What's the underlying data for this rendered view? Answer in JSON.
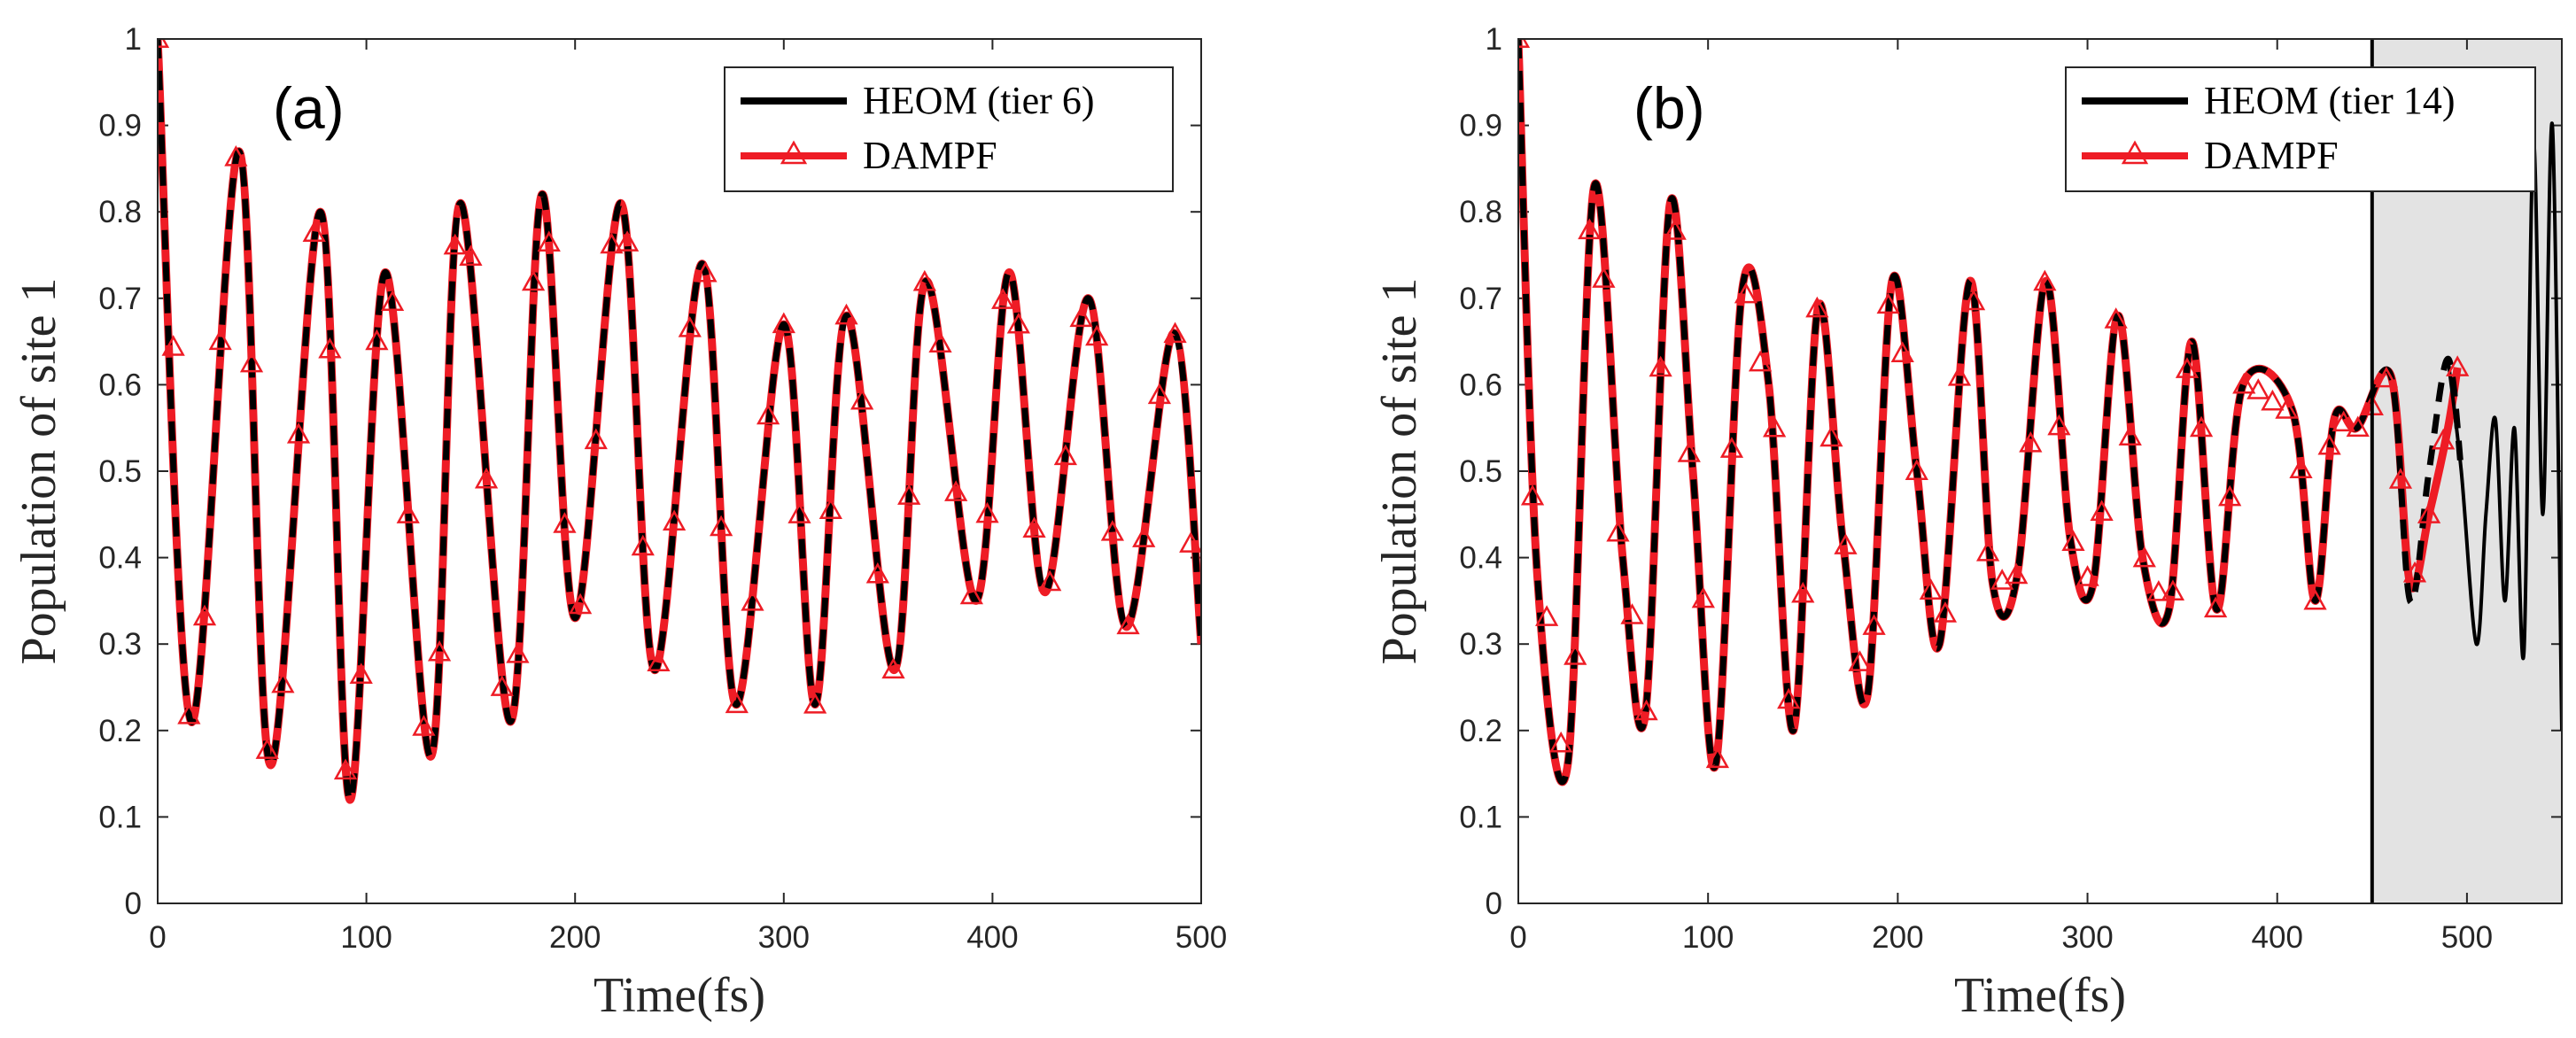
{
  "colors": {
    "heom": "#000000",
    "dampf": "#ee1c25",
    "unreliable_region": "#e3e3e3",
    "axis": "#262626"
  },
  "chart_data": [
    {
      "type": "line",
      "panel_label": "(a)",
      "xlabel": "Time(fs)",
      "ylabel": "Population of site 1",
      "xlim": [
        0,
        500
      ],
      "ylim": [
        0,
        1
      ],
      "xticks": [
        0,
        100,
        200,
        300,
        400,
        500
      ],
      "yticks": [
        0,
        0.1,
        0.2,
        0.3,
        0.4,
        0.5,
        0.6,
        0.7,
        0.8,
        0.9,
        1
      ],
      "ytick_labels": [
        "0",
        "0.1",
        "0.2",
        "0.3",
        "0.4",
        "0.5",
        "0.6",
        "0.7",
        "0.8",
        "0.9",
        "1"
      ],
      "legend_position": "top-right",
      "legend": [
        "HEOM (tier 6)",
        "DAMPF"
      ],
      "series": [
        {
          "name": "HEOM (tier 6)",
          "style": "solid",
          "x": [
            0,
            16,
            39,
            54,
            78,
            92,
            109,
            131,
            145,
            169,
            184,
            200,
            222,
            238,
            261,
            277,
            300,
            315,
            330,
            353,
            368,
            392,
            408,
            425,
            446,
            464,
            487,
            500
          ],
          "y": [
            1.0,
            0.21,
            0.87,
            0.16,
            0.8,
            0.12,
            0.73,
            0.17,
            0.81,
            0.21,
            0.82,
            0.33,
            0.81,
            0.27,
            0.74,
            0.23,
            0.67,
            0.23,
            0.68,
            0.27,
            0.72,
            0.35,
            0.73,
            0.36,
            0.7,
            0.32,
            0.66,
            0.3
          ]
        },
        {
          "name": "DAMPF",
          "style": "dashed-with-triangles",
          "x": [
            0,
            16,
            39,
            54,
            78,
            92,
            109,
            131,
            145,
            169,
            184,
            200,
            222,
            238,
            261,
            277,
            300,
            315,
            330,
            353,
            368,
            392,
            408,
            425,
            446,
            464,
            487,
            500
          ],
          "y": [
            1.0,
            0.21,
            0.87,
            0.16,
            0.8,
            0.12,
            0.73,
            0.17,
            0.81,
            0.21,
            0.82,
            0.33,
            0.81,
            0.27,
            0.74,
            0.23,
            0.67,
            0.23,
            0.68,
            0.27,
            0.72,
            0.35,
            0.73,
            0.36,
            0.7,
            0.32,
            0.66,
            0.3
          ]
        }
      ]
    },
    {
      "type": "line",
      "panel_label": "(b)",
      "xlabel": "Time(fs)",
      "ylabel": "Population of site 1",
      "xlim": [
        0,
        550
      ],
      "ylim": [
        0,
        1
      ],
      "xticks": [
        0,
        100,
        200,
        300,
        400,
        500
      ],
      "yticks": [
        0,
        0.1,
        0.2,
        0.3,
        0.4,
        0.5,
        0.6,
        0.7,
        0.8,
        0.9,
        1
      ],
      "ytick_labels": [
        "0",
        "0.1",
        "0.2",
        "0.3",
        "0.4",
        "0.5",
        "0.6",
        "0.7",
        "0.8",
        "0.9",
        "1"
      ],
      "legend_position": "top-right",
      "legend": [
        "HEOM (tier 14)",
        "DAMPF"
      ],
      "shaded_region": [
        450,
        550
      ],
      "vertical_line_x": 450,
      "series": [
        {
          "name": "HEOM (tier 14)",
          "style": "solid",
          "x": [
            0,
            10,
            26,
            40,
            55,
            67,
            80,
            92,
            104,
            118,
            132,
            145,
            158,
            171,
            184,
            197,
            210,
            222,
            238,
            250,
            263,
            278,
            291,
            303,
            316,
            329,
            343,
            355,
            368,
            382,
            408,
            420,
            430,
            442,
            460,
            470,
            480,
            490,
            497,
            505,
            510,
            515,
            520,
            525,
            530,
            535,
            540,
            545,
            550
          ],
          "y": [
            1.0,
            0.38,
            0.16,
            0.83,
            0.4,
            0.22,
            0.81,
            0.5,
            0.16,
            0.71,
            0.6,
            0.2,
            0.69,
            0.42,
            0.24,
            0.72,
            0.5,
            0.3,
            0.72,
            0.37,
            0.38,
            0.72,
            0.42,
            0.37,
            0.68,
            0.4,
            0.34,
            0.65,
            0.34,
            0.6,
            0.57,
            0.35,
            0.56,
            0.55,
            0.61,
            0.35,
            0.5,
            0.63,
            0.5,
            0.3,
            0.45,
            0.56,
            0.35,
            0.55,
            0.29,
            0.88,
            0.45,
            0.9,
            0.2
          ]
        },
        {
          "name": "DAMPF",
          "style": "dashed-with-triangles",
          "x": [
            0,
            10,
            26,
            40,
            55,
            67,
            80,
            92,
            104,
            118,
            132,
            145,
            158,
            171,
            184,
            197,
            210,
            222,
            238,
            250,
            263,
            278,
            291,
            303,
            316,
            329,
            343,
            355,
            368,
            382,
            408,
            420,
            430,
            442,
            460,
            470,
            480,
            490,
            495
          ],
          "y": [
            1.0,
            0.38,
            0.16,
            0.83,
            0.4,
            0.22,
            0.81,
            0.5,
            0.16,
            0.71,
            0.6,
            0.2,
            0.69,
            0.42,
            0.24,
            0.72,
            0.5,
            0.3,
            0.72,
            0.37,
            0.38,
            0.72,
            0.42,
            0.37,
            0.68,
            0.4,
            0.34,
            0.65,
            0.34,
            0.6,
            0.57,
            0.35,
            0.56,
            0.55,
            0.61,
            0.37,
            0.45,
            0.55,
            0.62
          ]
        }
      ]
    }
  ]
}
